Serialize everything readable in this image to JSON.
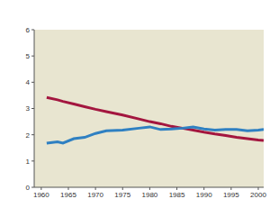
{
  "chart_data": {
    "type": "line",
    "x": [
      1961,
      1963,
      1964,
      1966,
      1968,
      1970,
      1972,
      1975,
      1978,
      1980,
      1982,
      1984,
      1986,
      1988,
      1990,
      1992,
      1994,
      1996,
      1998,
      2000,
      2001
    ],
    "series": [
      {
        "color": "#a3163f",
        "values": [
          3.42,
          3.33,
          3.27,
          3.17,
          3.07,
          2.97,
          2.88,
          2.75,
          2.6,
          2.5,
          2.42,
          2.32,
          2.25,
          2.18,
          2.1,
          2.03,
          1.97,
          1.9,
          1.85,
          1.8,
          1.78
        ]
      },
      {
        "color": "#2f80c2",
        "values": [
          1.68,
          1.73,
          1.68,
          1.85,
          1.9,
          2.05,
          2.15,
          2.18,
          2.25,
          2.3,
          2.2,
          2.22,
          2.25,
          2.3,
          2.22,
          2.18,
          2.2,
          2.2,
          2.15,
          2.18,
          2.2
        ]
      }
    ],
    "xlim": [
      1958.7,
      2001
    ],
    "xticks": [
      1960,
      1965,
      1970,
      1975,
      1980,
      1985,
      1990,
      1995,
      2000
    ],
    "ylim": [
      0,
      6
    ],
    "yticks": [
      0,
      1,
      2,
      3,
      4,
      5,
      6
    ],
    "grid": false
  }
}
